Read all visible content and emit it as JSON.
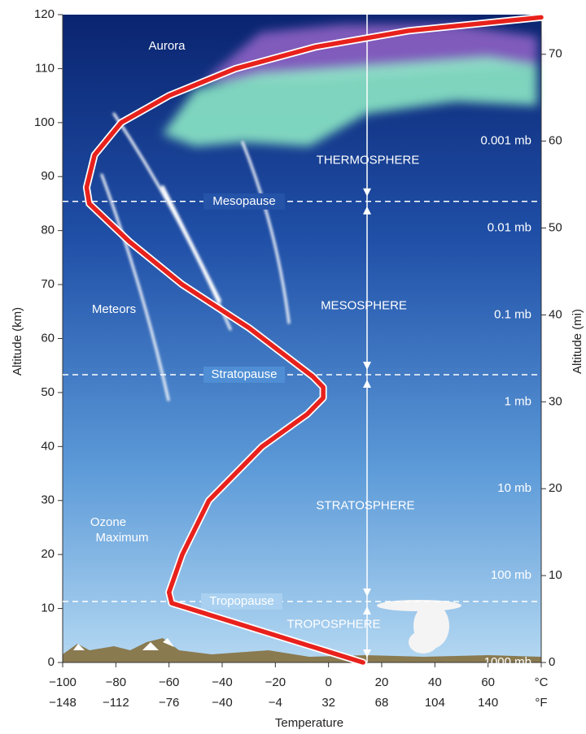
{
  "chart_data": {
    "type": "line",
    "x_label": "Temperature",
    "y_label": "Altitude (km)",
    "y2_label": "Altitude (mi)",
    "series": [
      {
        "color": "#e8211c",
        "x": [
          13,
          -59,
          -60,
          -55,
          -45,
          -25,
          -8,
          -2,
          -2,
          -6,
          -30,
          -55,
          -75,
          -90,
          -91,
          -88,
          -78,
          -60,
          -35,
          -5,
          30,
          80
        ],
        "values": [
          0,
          11,
          13,
          20,
          30,
          40,
          46,
          49,
          51,
          53,
          62,
          70,
          78,
          85,
          88,
          94,
          100,
          105,
          110,
          114,
          117,
          119.5
        ]
      }
    ],
    "xlim": [
      -100,
      80
    ],
    "ylim": [
      0,
      120
    ],
    "y2lim": [
      0,
      74.56
    ],
    "xticks": [
      {
        "value": -100,
        "label": "−100"
      },
      {
        "value": -80,
        "label": "−80"
      },
      {
        "value": -60,
        "label": "−60"
      },
      {
        "value": -40,
        "label": "−40"
      },
      {
        "value": -20,
        "label": "−20"
      },
      0,
      20,
      40,
      60,
      {
        "value": 80,
        "label": "°C"
      }
    ],
    "fticks": [
      {
        "value": -100,
        "label": "−148"
      },
      {
        "value": -80,
        "label": "−112"
      },
      {
        "value": -60,
        "label": "−76"
      },
      {
        "value": -40,
        "label": "−40"
      },
      {
        "value": -20,
        "label": "−4"
      },
      {
        "value": 0,
        "label": "32"
      },
      {
        "value": 20,
        "label": "68"
      },
      {
        "value": 40,
        "label": "104"
      },
      {
        "value": 60,
        "label": "140"
      },
      {
        "value": 80,
        "label": "°F"
      }
    ],
    "yticks": [
      0,
      10,
      20,
      30,
      40,
      50,
      60,
      70,
      80,
      90,
      100,
      110,
      120
    ],
    "y2ticks": [
      0,
      10,
      20,
      30,
      40,
      50,
      60,
      70
    ],
    "pressure_labels": [
      {
        "value": 0,
        "label": "1000 mb"
      },
      {
        "value": 10,
        "label": "100 mb"
      },
      {
        "value": 20,
        "label": "10 mb"
      },
      {
        "value": 30,
        "label": "1 mb"
      },
      {
        "value": 40,
        "label": "0.1 mb"
      },
      {
        "value": 50,
        "label": "0.01 mb"
      },
      {
        "value": 60,
        "label": "0.001 mb"
      }
    ],
    "boundaries": [
      {
        "value": 11.3,
        "label": "Tropopause"
      },
      {
        "value": 53.3,
        "label": "Stratopause"
      },
      {
        "value": 85.4,
        "label": "Mesopause"
      }
    ],
    "layers": [
      "TROPOSPHERE",
      "STRATOSPHERE",
      "MESOSPHERE",
      "THERMOSPHERE"
    ],
    "annotations": [
      "Aurora",
      "Meteors",
      "Ozone",
      "Maximum"
    ]
  }
}
